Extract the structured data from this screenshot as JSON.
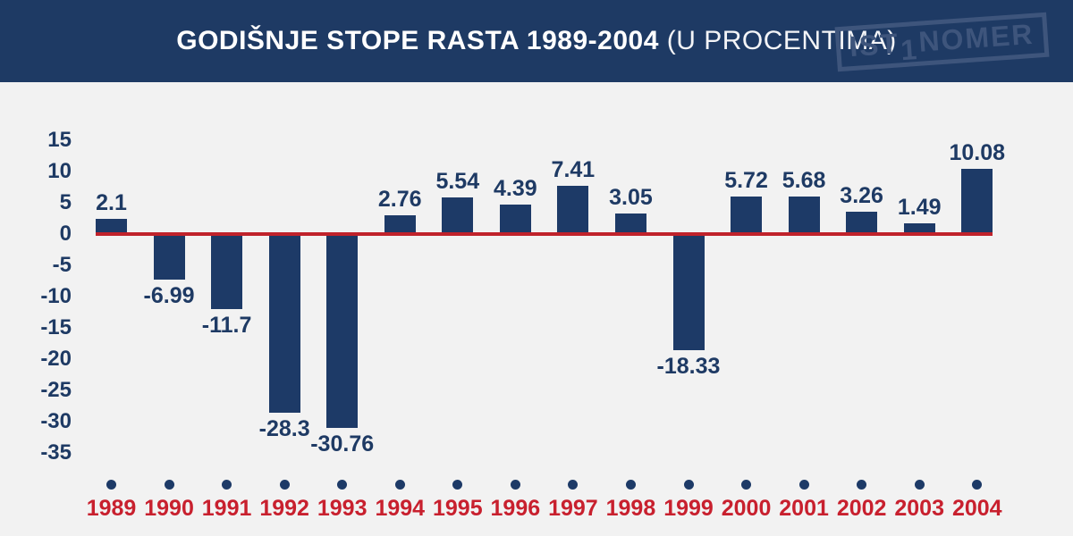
{
  "header": {
    "title_bold": "GODIŠNJE STOPE RASTA 1989-2004",
    "title_light": "(U PROCENTIMA)",
    "logo": {
      "part1": "IST",
      "part2": "1",
      "part3": "NOMER"
    },
    "background_color": "#1e3a64",
    "title_color": "#ffffff"
  },
  "chart_data": {
    "type": "bar",
    "title": "GODIŠNJE STOPE RASTA 1989-2004 (U PROCENTIMA)",
    "categories": [
      "1989",
      "1990",
      "1991",
      "1992",
      "1993",
      "1994",
      "1995",
      "1996",
      "1997",
      "1998",
      "1999",
      "2000",
      "2001",
      "2002",
      "2003",
      "2004"
    ],
    "values": [
      2.1,
      -6.99,
      -11.7,
      -28.3,
      -30.76,
      2.76,
      5.54,
      4.39,
      7.41,
      3.05,
      -18.33,
      5.72,
      5.68,
      3.26,
      1.49,
      10.08
    ],
    "value_labels": [
      "2.1",
      "-6.99",
      "-11.7",
      "-28.3",
      "-30.76",
      "2.76",
      "5.54",
      "4.39",
      "7.41",
      "3.05",
      "-18.33",
      "5.72",
      "5.68",
      "3.26",
      "1.49",
      "10.08"
    ],
    "y_ticks": [
      15,
      10,
      5,
      0,
      -5,
      -10,
      -15,
      -20,
      -25,
      -30,
      -35
    ],
    "ylim": [
      -37,
      17
    ],
    "xlabel": "",
    "ylabel": "",
    "grid": false,
    "legend": false,
    "bar_color": "#1d3a67",
    "zero_line_color": "#c0222b",
    "value_label_color": "#1e3a64",
    "year_label_color": "#c8202e",
    "background_color": "#f2f2f2"
  }
}
